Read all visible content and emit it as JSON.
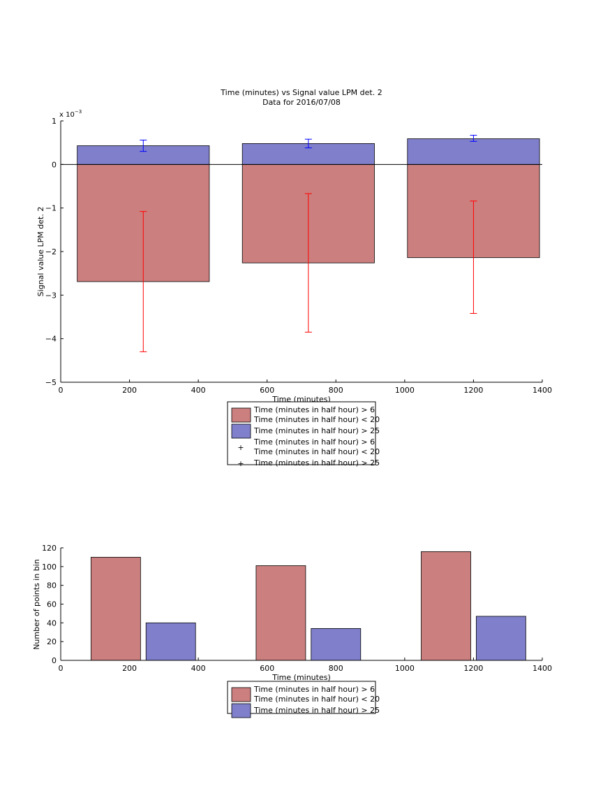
{
  "chart_data": [
    {
      "type": "bar",
      "title": "Time (minutes) vs Signal value LPM det. 2",
      "subtitle": "Data for 2016/07/08",
      "xlabel": "Time (minutes)",
      "ylabel": "Signal value LPM det. 2",
      "y_exponent_label": "x 10",
      "y_exponent_power": "−3",
      "xlim": [
        0,
        1400
      ],
      "ylim": [
        -5,
        1
      ],
      "y_scale": "×1e-3",
      "xticks": [
        0,
        200,
        400,
        600,
        800,
        1000,
        1200,
        1400
      ],
      "yticks": [
        -5,
        -4,
        -3,
        -2,
        -1,
        0,
        1
      ],
      "grid": false,
      "legend_position": "below",
      "bar_centers": [
        240,
        720,
        1200
      ],
      "bar_width": 384,
      "series": [
        {
          "name": "Time (minutes in half hour) > 6\nTime (minutes in half hour) < 20",
          "color": "#cc7f7f",
          "values": [
            -2.69,
            -2.26,
            -2.14
          ],
          "errbar_color": "#ff0000",
          "err_low": [
            -4.3,
            -3.85,
            -3.42
          ],
          "err_high": [
            -1.08,
            -0.67,
            -0.84
          ]
        },
        {
          "name": "Time (minutes in half hour) > 25",
          "color": "#7f7fcc",
          "values": [
            0.43,
            0.48,
            0.59
          ],
          "errbar_color": "#0000ff",
          "err_low": [
            0.3,
            0.38,
            0.53
          ],
          "err_high": [
            0.56,
            0.58,
            0.67
          ]
        }
      ],
      "legend": [
        {
          "lines": [
            "Time (minutes in half hour) > 6",
            "Time (minutes in half hour) < 20"
          ],
          "marker": "patch",
          "color": "#cc7f7f"
        },
        {
          "lines": [
            "Time (minutes in half hour) > 25"
          ],
          "marker": "patch",
          "color": "#7f7fcc"
        },
        {
          "lines": [
            "Time (minutes in half hour) > 6",
            "Time (minutes in half hour) < 20"
          ],
          "marker": "plus",
          "color": "#ff0000"
        },
        {
          "lines": [
            "Time (minutes in half hour) > 25"
          ],
          "marker": "plus",
          "color": "#0000ff"
        }
      ]
    },
    {
      "type": "bar",
      "title": "",
      "xlabel": "Time (minutes)",
      "ylabel": "Number of points in bin",
      "xlim": [
        0,
        1400
      ],
      "ylim": [
        0,
        120
      ],
      "xticks": [
        0,
        200,
        400,
        600,
        800,
        1000,
        1200,
        1400
      ],
      "yticks": [
        0,
        20,
        40,
        60,
        80,
        100,
        120
      ],
      "grid": false,
      "legend_position": "below",
      "bar_width": 144,
      "series": [
        {
          "name": "Time (minutes in half hour) > 6\nTime (minutes in half hour) < 20",
          "color": "#cc7f7f",
          "x": [
            160,
            640,
            1120
          ],
          "values": [
            110,
            101,
            116
          ]
        },
        {
          "name": "Time (minutes in half hour) > 25",
          "color": "#7f7fcc",
          "x": [
            320,
            800,
            1280
          ],
          "values": [
            40,
            34,
            47
          ]
        }
      ],
      "legend": [
        {
          "lines": [
            "Time (minutes in half hour) > 6",
            "Time (minutes in half hour) < 20"
          ],
          "marker": "patch",
          "color": "#cc7f7f"
        },
        {
          "lines": [
            "Time (minutes in half hour) > 25"
          ],
          "marker": "patch",
          "color": "#7f7fcc"
        }
      ]
    }
  ]
}
